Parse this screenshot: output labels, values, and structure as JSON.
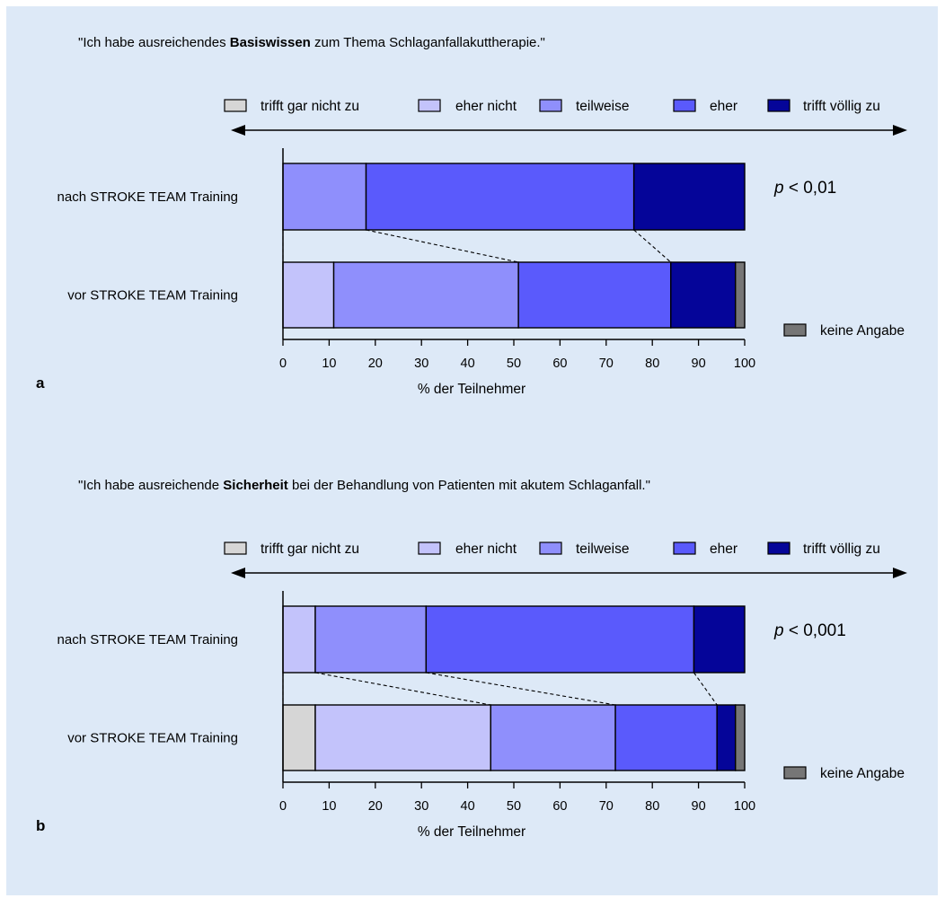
{
  "colors": {
    "trifft gar nicht zu": "#d6d6d6",
    "eher nicht": "#c3c3fb",
    "teilweise": "#8f8ffc",
    "eher": "#5a5afc",
    "trifft völlig zu": "#050599",
    "keine Angabe": "#767676"
  },
  "legend": {
    "items": [
      "trifft gar nicht zu",
      "eher nicht",
      "teilweise",
      "eher",
      "trifft völlig zu"
    ],
    "no_answer": "keine Angabe"
  },
  "chart_data": [
    {
      "type": "bar",
      "orientation": "horizontal",
      "stacked": true,
      "panel_label": "a",
      "title_parts": [
        "\"Ich habe ausreichendes ",
        "Basiswissen",
        " zum Thema Schlaganfallakuttherapie.\""
      ],
      "xlabel": "% der Teilnehmer",
      "xlim": [
        0,
        100
      ],
      "xticks": [
        0,
        10,
        20,
        30,
        40,
        50,
        60,
        70,
        80,
        90,
        100
      ],
      "categories": [
        "nach STROKE TEAM Training",
        "vor STROKE TEAM Training"
      ],
      "series": [
        {
          "name": "trifft gar nicht zu",
          "values": [
            0,
            0
          ]
        },
        {
          "name": "eher nicht",
          "values": [
            0,
            11
          ]
        },
        {
          "name": "teilweise",
          "values": [
            18,
            40
          ]
        },
        {
          "name": "eher",
          "values": [
            58,
            33
          ]
        },
        {
          "name": "trifft völlig zu",
          "values": [
            24,
            14
          ]
        },
        {
          "name": "keine Angabe",
          "values": [
            0,
            2
          ]
        }
      ],
      "p_prefix": "p",
      "p_rest": " < 0,01"
    },
    {
      "type": "bar",
      "orientation": "horizontal",
      "stacked": true,
      "panel_label": "b",
      "title_parts": [
        "\"Ich habe ausreichende ",
        "Sicherheit",
        " bei der Behandlung von Patienten mit akutem Schlaganfall.\""
      ],
      "xlabel": "% der Teilnehmer",
      "xlim": [
        0,
        100
      ],
      "xticks": [
        0,
        10,
        20,
        30,
        40,
        50,
        60,
        70,
        80,
        90,
        100
      ],
      "categories": [
        "nach STROKE TEAM Training",
        "vor STROKE TEAM Training"
      ],
      "series": [
        {
          "name": "trifft gar nicht zu",
          "values": [
            0,
            7
          ]
        },
        {
          "name": "eher nicht",
          "values": [
            7,
            38
          ]
        },
        {
          "name": "teilweise",
          "values": [
            24,
            27
          ]
        },
        {
          "name": "eher",
          "values": [
            58,
            22
          ]
        },
        {
          "name": "trifft völlig zu",
          "values": [
            11,
            4
          ]
        },
        {
          "name": "keine Angabe",
          "values": [
            0,
            2
          ]
        }
      ],
      "p_prefix": "p",
      "p_rest": " < 0,001"
    }
  ]
}
